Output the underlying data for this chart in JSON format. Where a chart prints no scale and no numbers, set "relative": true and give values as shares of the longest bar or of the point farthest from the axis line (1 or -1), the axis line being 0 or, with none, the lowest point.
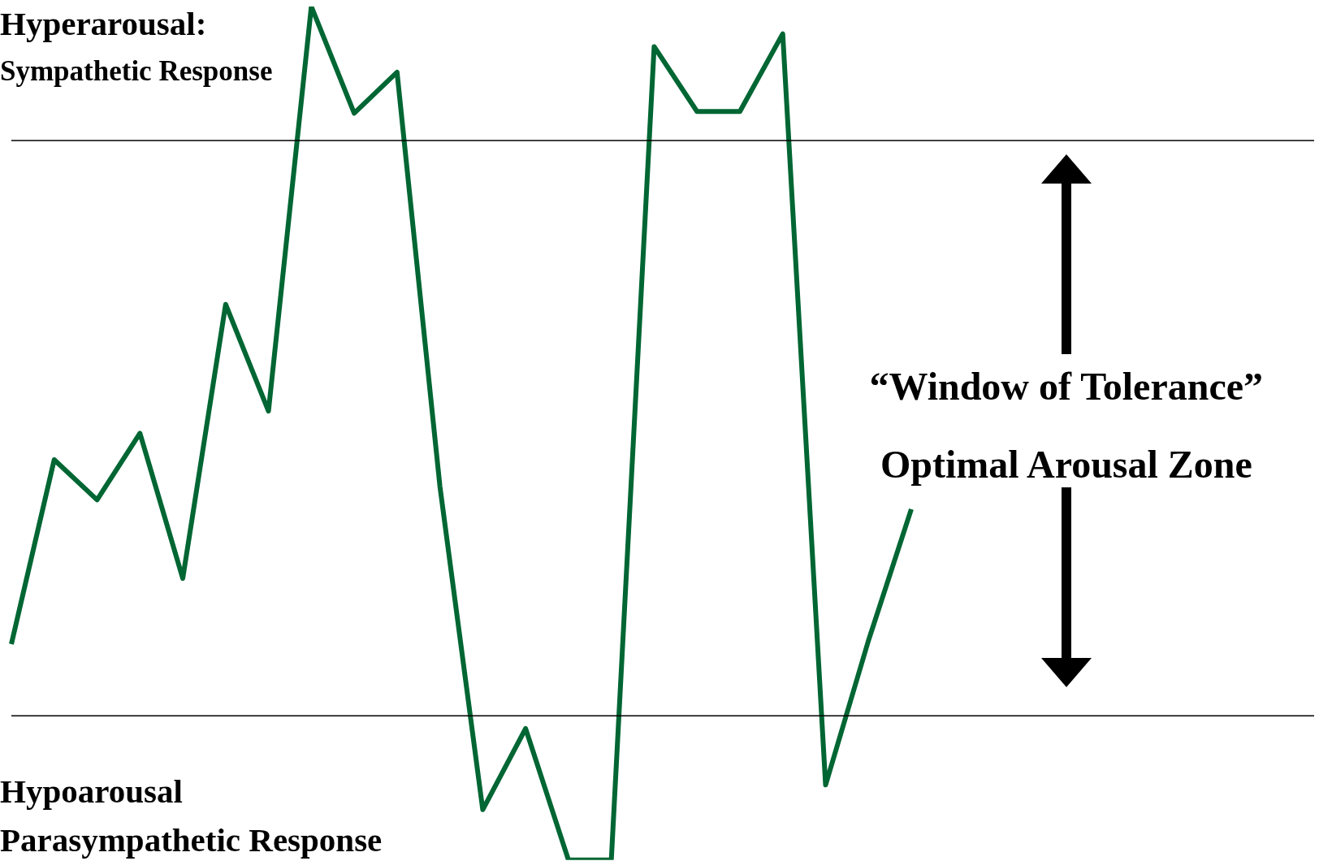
{
  "chart_data": {
    "type": "line",
    "relative": true,
    "legend": false,
    "marker": "none",
    "line_style": "solid",
    "categories": [
      null,
      null,
      null,
      null,
      null,
      null,
      null,
      null,
      null,
      null,
      null,
      null,
      null,
      null,
      null,
      null,
      null,
      null,
      null,
      null,
      null,
      null
    ],
    "series": [
      {
        "color": "#006633",
        "values": [
          0.253,
          0.469,
          0.422,
          0.5,
          0.33,
          0.651,
          0.526,
          1,
          0.875,
          0.923,
          0.438,
          0.059,
          0.154,
          0,
          0,
          0.953,
          0.877,
          0.877,
          0.968,
          0.088,
          0.257,
          0.411
        ]
      }
    ],
    "ref_lines": [
      {
        "axis": "y",
        "value": 0.843,
        "color": "#000000"
      },
      {
        "axis": "y",
        "value": 0.169,
        "color": "#000000"
      }
    ],
    "annotations": [
      "Hyperarousal:",
      "Sympathetic Response",
      "“Window of Tolerance”",
      "Optimal Arousal Zone",
      "Hypoarousal",
      "Parasympathetic Response"
    ]
  }
}
